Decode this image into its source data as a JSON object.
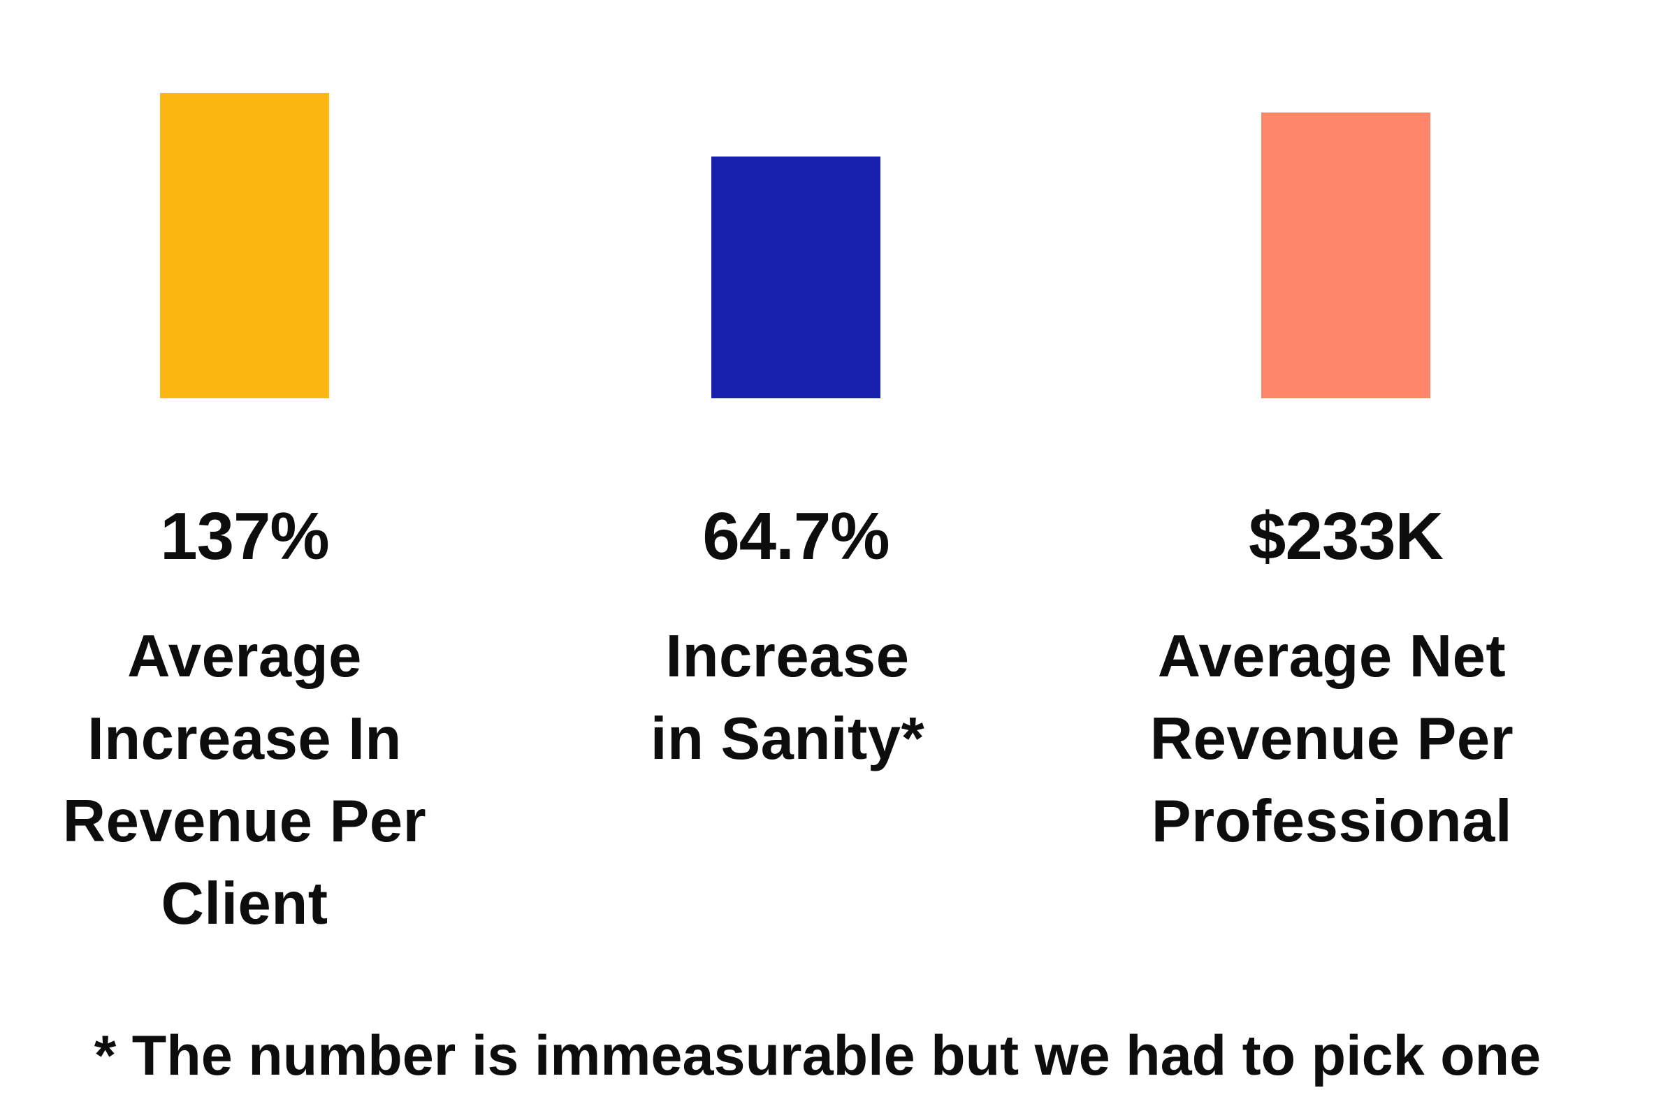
{
  "page": {
    "background": "#FFFFFF",
    "text_color": "#0D0D0D"
  },
  "chart_data": {
    "type": "bar",
    "title": "",
    "xlabel": "",
    "ylabel": "",
    "axes_shown": false,
    "grid": false,
    "legend": false,
    "categories": [
      "Average Increase In Revenue Per Client",
      "Increase in Sanity*",
      "Average Net Revenue Per Professional"
    ],
    "value_labels": [
      "137%",
      "64.7%",
      "$233K"
    ],
    "values": [
      137,
      64.7,
      233
    ],
    "bar_colors": [
      "#FCB713",
      "#1620AC",
      "#FD8569"
    ],
    "bar_relative_heights": [
      1.0,
      0.79,
      0.94
    ],
    "footnote": "* The number is immeasurable but we had to pick one"
  },
  "columns": [
    {
      "stat": "137%",
      "bar_color": "#FCB713",
      "label": "Average Increase In Revenue Per Client",
      "label_lines": [
        "Average",
        "Increase In",
        "Revenue Per",
        "Client"
      ]
    },
    {
      "stat": "64.7%",
      "bar_color": "#1620AC",
      "label": "Increase in Sanity*",
      "label_lines": [
        "Increase",
        "in Sanity*"
      ]
    },
    {
      "stat": "$233K",
      "bar_color": "#FD8569",
      "label": "Average Net Revenue Per Professional",
      "label_lines": [
        "Average Net",
        "Revenue Per",
        "Professional"
      ]
    }
  ],
  "footnote": {
    "text": "* The number is immeasurable but we had to pick one"
  }
}
